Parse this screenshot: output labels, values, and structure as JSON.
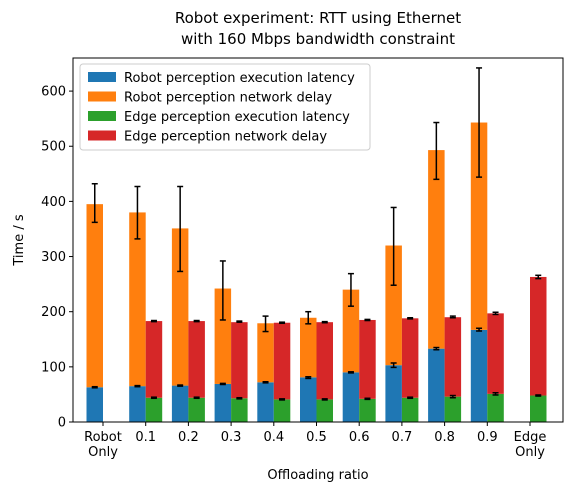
{
  "chart_data": {
    "type": "bar",
    "title": [
      "Robot experiment: RTT using Ethernet",
      "with 160 Mbps bandwidth constraint"
    ],
    "xlabel": "Offloading ratio",
    "ylabel": "Time / s",
    "ylim": [
      0,
      660
    ],
    "yticks": [
      0,
      100,
      200,
      300,
      400,
      500,
      600
    ],
    "grid": false,
    "legend_position": "top-left",
    "categories": [
      [
        "Robot",
        "Only"
      ],
      [
        "0.1"
      ],
      [
        "0.2"
      ],
      [
        "0.3"
      ],
      [
        "0.4"
      ],
      [
        "0.5"
      ],
      [
        "0.6"
      ],
      [
        "0.7"
      ],
      [
        "0.8"
      ],
      [
        "0.9"
      ],
      [
        "Edge",
        "Only"
      ]
    ],
    "robot_bars": {
      "execution": [
        63,
        65,
        66,
        69,
        72,
        81,
        90,
        103,
        133,
        167,
        null
      ],
      "network": [
        332,
        315,
        285,
        173,
        107,
        108,
        150,
        217,
        360,
        376,
        null
      ],
      "total_error_low": [
        362,
        332,
        273,
        185,
        164,
        178,
        210,
        248,
        440,
        444,
        null
      ],
      "total_error_high": [
        432,
        427,
        427,
        292,
        192,
        200,
        269,
        389,
        543,
        642,
        null
      ],
      "exec_error_low": [
        62,
        64,
        65,
        68,
        71,
        79,
        89,
        99,
        131,
        165,
        null
      ],
      "exec_error_high": [
        64,
        66,
        67,
        70,
        73,
        82,
        91,
        107,
        135,
        170,
        null
      ]
    },
    "edge_bars": {
      "execution": [
        null,
        44,
        44,
        43,
        41,
        41,
        42,
        44,
        46,
        51,
        48
      ],
      "network": [
        null,
        139,
        139,
        138,
        139,
        140,
        143,
        144,
        144,
        146,
        215
      ],
      "total_error_low": [
        null,
        182,
        182,
        181,
        179,
        180,
        184,
        187,
        189,
        195,
        260
      ],
      "total_error_high": [
        null,
        184,
        184,
        183,
        181,
        182,
        186,
        189,
        192,
        199,
        266
      ],
      "exec_error_low": [
        null,
        43,
        43,
        42,
        40,
        40,
        41,
        43,
        44,
        49,
        47
      ],
      "exec_error_high": [
        null,
        45,
        45,
        44,
        42,
        42,
        43,
        45,
        48,
        53,
        49
      ]
    },
    "series": [
      {
        "name": "Robot perception execution latency",
        "color": "#1f77b4"
      },
      {
        "name": "Robot perception network delay",
        "color": "#ff7f0e"
      },
      {
        "name": "Edge perception execution latency",
        "color": "#2ca02c"
      },
      {
        "name": "Edge perception network delay",
        "color": "#d62728"
      }
    ]
  }
}
